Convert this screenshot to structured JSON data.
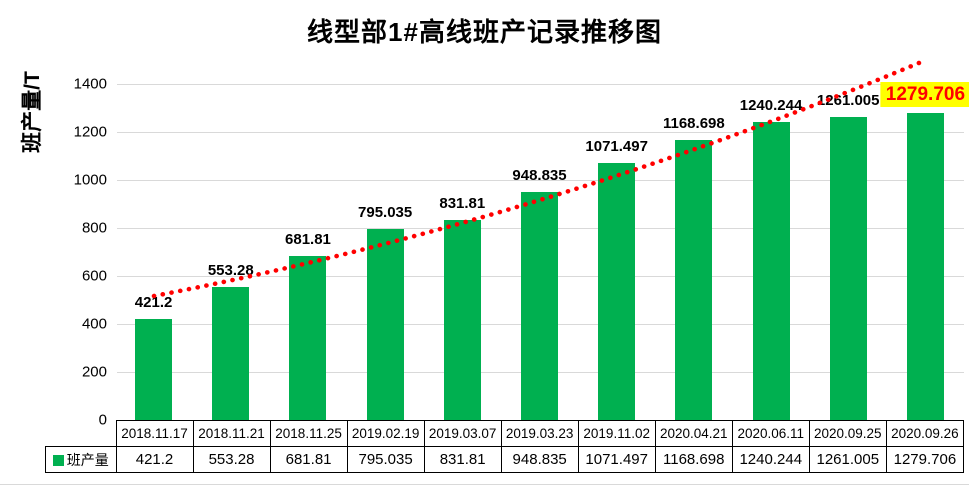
{
  "chart_data": {
    "type": "bar",
    "title": "线型部1#高线班产记录推移图",
    "ylabel": "班产量/T",
    "series_name": "班产量",
    "categories": [
      "2018.11.17",
      "2018.11.21",
      "2018.11.25",
      "2019.02.19",
      "2019.03.07",
      "2019.03.23",
      "2019.11.02",
      "2020.04.21",
      "2020.06.11",
      "2020.09.25",
      "2020.09.26"
    ],
    "values": [
      421.2,
      553.28,
      681.81,
      795.035,
      831.81,
      948.835,
      1071.497,
      1168.698,
      1240.244,
      1261.005,
      1279.706
    ],
    "ylim": [
      0,
      1400
    ],
    "yticks": [
      0,
      200,
      400,
      600,
      800,
      1000,
      1200,
      1400
    ],
    "grid": true,
    "bar_color": "#00B050",
    "trend_color": "#FF0000",
    "trend_style": "dotted",
    "highlight_index": 10,
    "highlight_bg": "#FFFF00",
    "highlight_text_color": "#FF0000",
    "legend_position": "table-left"
  }
}
